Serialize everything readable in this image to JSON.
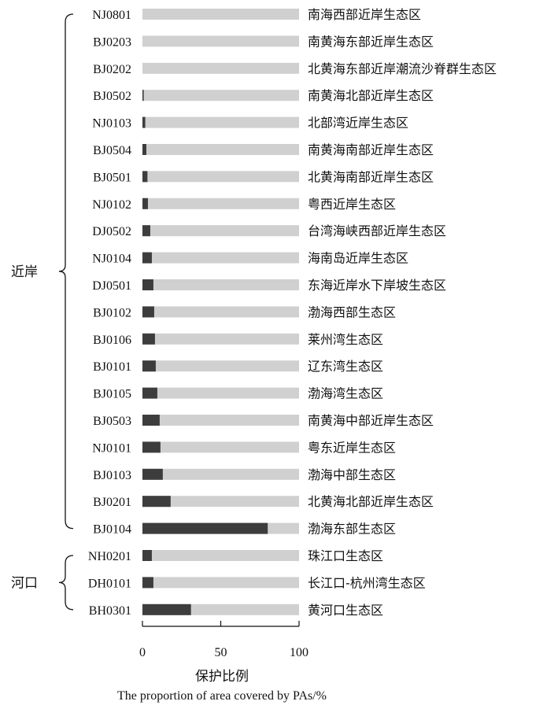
{
  "chart_data": {
    "type": "bar",
    "orientation": "horizontal",
    "stacked_to": 100,
    "xlabel_cn": "保护比例",
    "xlabel_en": "The proportion of area covered by PAs/%",
    "xlim": [
      0,
      100
    ],
    "xticks": [
      0,
      50,
      100
    ],
    "colors": {
      "covered": "#3d3d3d",
      "remaining": "#d0d0d0"
    },
    "groups": [
      {
        "name": "近岸",
        "start": 0,
        "end": 19
      },
      {
        "name": "河口",
        "start": 20,
        "end": 22
      }
    ],
    "rows": [
      {
        "code": "NJ0801",
        "name": "南海西部近岸生态区",
        "value": 0
      },
      {
        "code": "BJ0203",
        "name": "南黄海东部近岸生态区",
        "value": 0
      },
      {
        "code": "BJ0202",
        "name": "北黄海东部近岸潮流沙脊群生态区",
        "value": 0
      },
      {
        "code": "BJ0502",
        "name": "南黄海北部近岸生态区",
        "value": 0.8
      },
      {
        "code": "NJ0103",
        "name": "北部湾近岸生态区",
        "value": 1.8
      },
      {
        "code": "BJ0504",
        "name": "南黄海南部近岸生态区",
        "value": 2.5
      },
      {
        "code": "BJ0501",
        "name": "北黄海南部近岸生态区",
        "value": 3.2
      },
      {
        "code": "NJ0102",
        "name": "粤西近岸生态区",
        "value": 3.5
      },
      {
        "code": "DJ0502",
        "name": "台湾海峡西部近岸生态区",
        "value": 5
      },
      {
        "code": "NJ0104",
        "name": "海南岛近岸生态区",
        "value": 6
      },
      {
        "code": "DJ0501",
        "name": "东海近岸水下岸坡生态区",
        "value": 7
      },
      {
        "code": "BJ0102",
        "name": "渤海西部生态区",
        "value": 7.5
      },
      {
        "code": "BJ0106",
        "name": "莱州湾生态区",
        "value": 8
      },
      {
        "code": "BJ0101",
        "name": "辽东湾生态区",
        "value": 8.5
      },
      {
        "code": "BJ0105",
        "name": "渤海湾生态区",
        "value": 9.5
      },
      {
        "code": "BJ0503",
        "name": "南黄海中部近岸生态区",
        "value": 11
      },
      {
        "code": "NJ0101",
        "name": "粤东近岸生态区",
        "value": 11.5
      },
      {
        "code": "BJ0103",
        "name": "渤海中部生态区",
        "value": 13
      },
      {
        "code": "BJ0201",
        "name": "北黄海北部近岸生态区",
        "value": 18
      },
      {
        "code": "BJ0104",
        "name": "渤海东部生态区",
        "value": 80
      },
      {
        "code": "NH0201",
        "name": "珠江口生态区",
        "value": 6
      },
      {
        "code": "DH0101",
        "name": "长江口-杭州湾生态区",
        "value": 7
      },
      {
        "code": "BH0301",
        "name": "黄河口生态区",
        "value": 31
      }
    ]
  }
}
